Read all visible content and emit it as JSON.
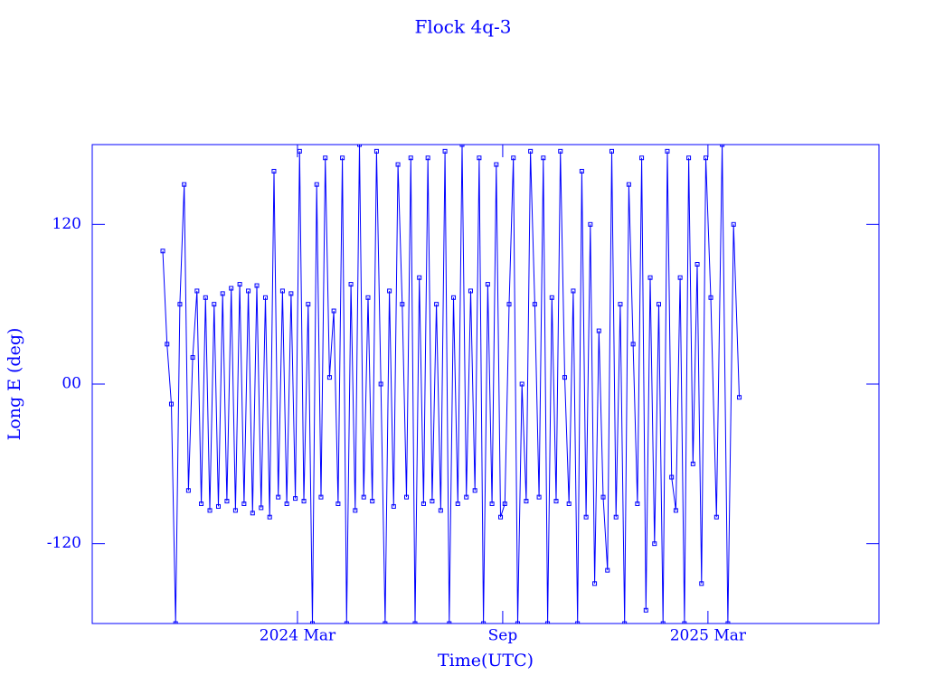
{
  "chart_data": {
    "type": "line",
    "title": "Flock 4q-3",
    "x_label": "Time(UTC)",
    "y_label": "Long E (deg)",
    "xlim": [
      "2023-09",
      "2025-08"
    ],
    "xticks": [
      {
        "value": "2024-03",
        "label": "2024 Mar"
      },
      {
        "value": "2024-09",
        "label": "Sep"
      },
      {
        "value": "2025-03",
        "label": "2025 Mar"
      }
    ],
    "ylim": [
      -180,
      180
    ],
    "yticks": [
      -120,
      {
        "value": 0,
        "label": "00"
      },
      120
    ],
    "x": [
      "2023-11",
      "2023-12",
      "2024-01",
      "2024-02",
      "2024-03",
      "2024-04",
      "2024-05",
      "2024-06",
      "2024-07",
      "2024-08",
      "2024-09",
      "2024-10",
      "2024-11",
      "2024-12",
      "2025-01",
      "2025-02",
      "2025-03"
    ],
    "series": [
      {
        "color": "#0000ff",
        "values": [
          [
            100,
            30,
            -15,
            -180,
            60,
            150,
            -80,
            20
          ],
          [
            70,
            -90,
            65,
            -95,
            60,
            -92,
            68,
            -88
          ],
          [
            72,
            -95,
            75,
            -90,
            70,
            -97,
            74,
            -93
          ],
          [
            65,
            -100,
            160,
            -85,
            70,
            -90,
            68,
            -86
          ],
          [
            175,
            -88,
            60,
            -180,
            150,
            -85,
            170,
            5
          ],
          [
            55,
            -90,
            170,
            -180,
            75,
            -95,
            180,
            -85
          ],
          [
            65,
            -88,
            175,
            0,
            -180,
            70,
            -92,
            165
          ],
          [
            60,
            -85,
            170,
            -180,
            80,
            -90,
            170,
            -88
          ],
          [
            60,
            -95,
            175,
            -180,
            65,
            -90,
            180,
            -85
          ],
          [
            70,
            -80,
            170,
            -180,
            75,
            -90,
            165,
            -100
          ],
          [
            -90,
            60,
            170,
            -180,
            0,
            -88,
            175,
            60
          ],
          [
            -85,
            170,
            -180,
            65,
            -88,
            175,
            5,
            -90
          ],
          [
            70,
            -180,
            160,
            -100,
            120,
            -150,
            40,
            -85
          ],
          [
            -140,
            175,
            -100,
            60,
            -180,
            150,
            30,
            -90
          ],
          [
            170,
            -170,
            80,
            -120,
            60,
            -180,
            175,
            -70
          ],
          [
            -95,
            80,
            -180,
            170,
            -60,
            90,
            -150,
            170
          ],
          [
            65,
            -100,
            180,
            -180,
            120,
            -10
          ]
        ]
      }
    ]
  }
}
